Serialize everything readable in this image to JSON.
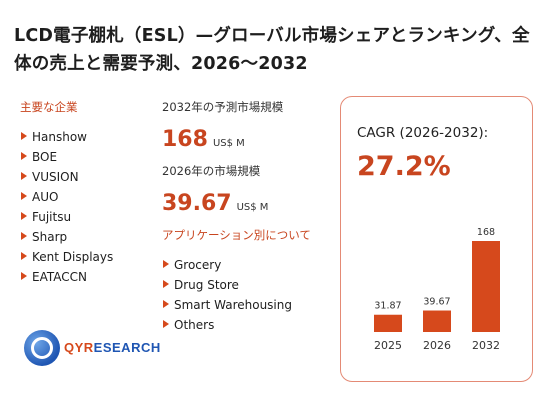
{
  "title": "LCD電子棚札（ESL）—グローバル市場シェアとランキング、全体の売上と需要予測、2026～2032",
  "companies_label": "主要な企業",
  "companies": [
    "Hanshow",
    "BOE",
    "VUSION",
    "AUO",
    "Fujitsu",
    "Sharp",
    "Kent Displays",
    "EATACCN"
  ],
  "forecast_2032": {
    "caption": "2032年の予測市場規模",
    "value": "168",
    "unit": "US$ M"
  },
  "market_2026": {
    "caption": "2026年の市場規模",
    "value": "39.67",
    "unit": "US$ M"
  },
  "applications_label": "アプリケーション別について",
  "applications": [
    "Grocery",
    "Drug Store",
    "Smart Warehousing",
    "Others"
  ],
  "cagr": {
    "label": "CAGR (2026-2032):",
    "value": "27.2%"
  },
  "logo": {
    "brand": "QYR",
    "suffix": "ESEARCH"
  },
  "colors": {
    "accent": "#c8451f",
    "bar": "#d6491c",
    "panel_border": "#e48a75",
    "logo_blue": "#1f56b3"
  },
  "chart_data": {
    "type": "bar",
    "categories": [
      "2025",
      "2026",
      "2032"
    ],
    "values": [
      31.87,
      39.67,
      168
    ],
    "title": "",
    "xlabel": "",
    "ylabel": "",
    "grid": false
  }
}
